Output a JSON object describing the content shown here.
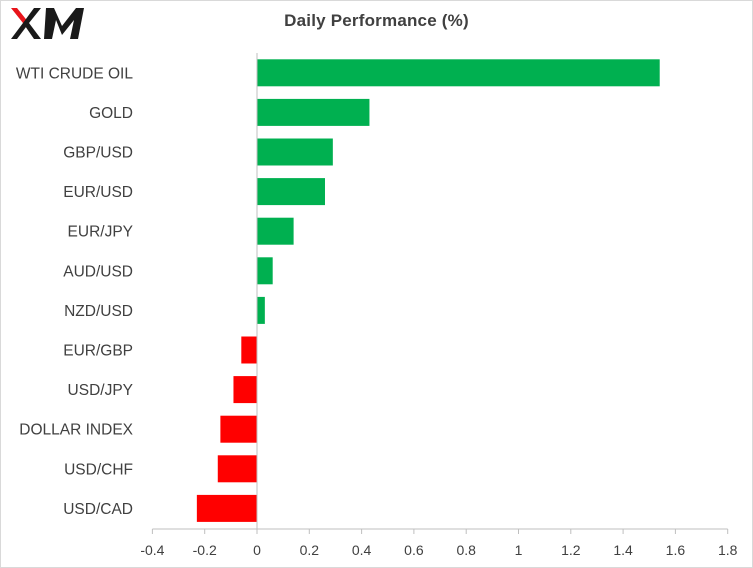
{
  "brand": {
    "logo_text": "XM",
    "logo_color": "#1a1a1a",
    "logo_accent": "#e8141b"
  },
  "chart_data": {
    "type": "bar",
    "orientation": "horizontal",
    "title": "Daily Performance  (%)",
    "xlabel": "",
    "ylabel": "",
    "categories": [
      "WTI CRUDE OIL",
      "GOLD",
      "GBP/USD",
      "EUR/USD",
      "EUR/JPY",
      "AUD/USD",
      "NZD/USD",
      "EUR/GBP",
      "USD/JPY",
      "DOLLAR INDEX",
      "USD/CHF",
      "USD/CAD"
    ],
    "values": [
      1.54,
      0.43,
      0.29,
      0.26,
      0.14,
      0.06,
      0.03,
      -0.06,
      -0.09,
      -0.14,
      -0.15,
      -0.23
    ],
    "xlim": [
      -0.4,
      1.8
    ],
    "ticks": [
      -0.4,
      -0.2,
      0,
      0.2,
      0.4,
      0.6,
      0.8,
      1,
      1.2,
      1.4,
      1.6,
      1.8
    ],
    "tick_labels": [
      "-0.4",
      "-0.2",
      "0",
      "0.2",
      "0.4",
      "0.6",
      "0.8",
      "1",
      "1.2",
      "1.4",
      "1.6",
      "1.8"
    ],
    "grid": false,
    "legend": "none",
    "colors": {
      "positive": "#00b050",
      "negative": "#ff0000",
      "axis": "#bfbfbf",
      "text": "#404040"
    }
  }
}
